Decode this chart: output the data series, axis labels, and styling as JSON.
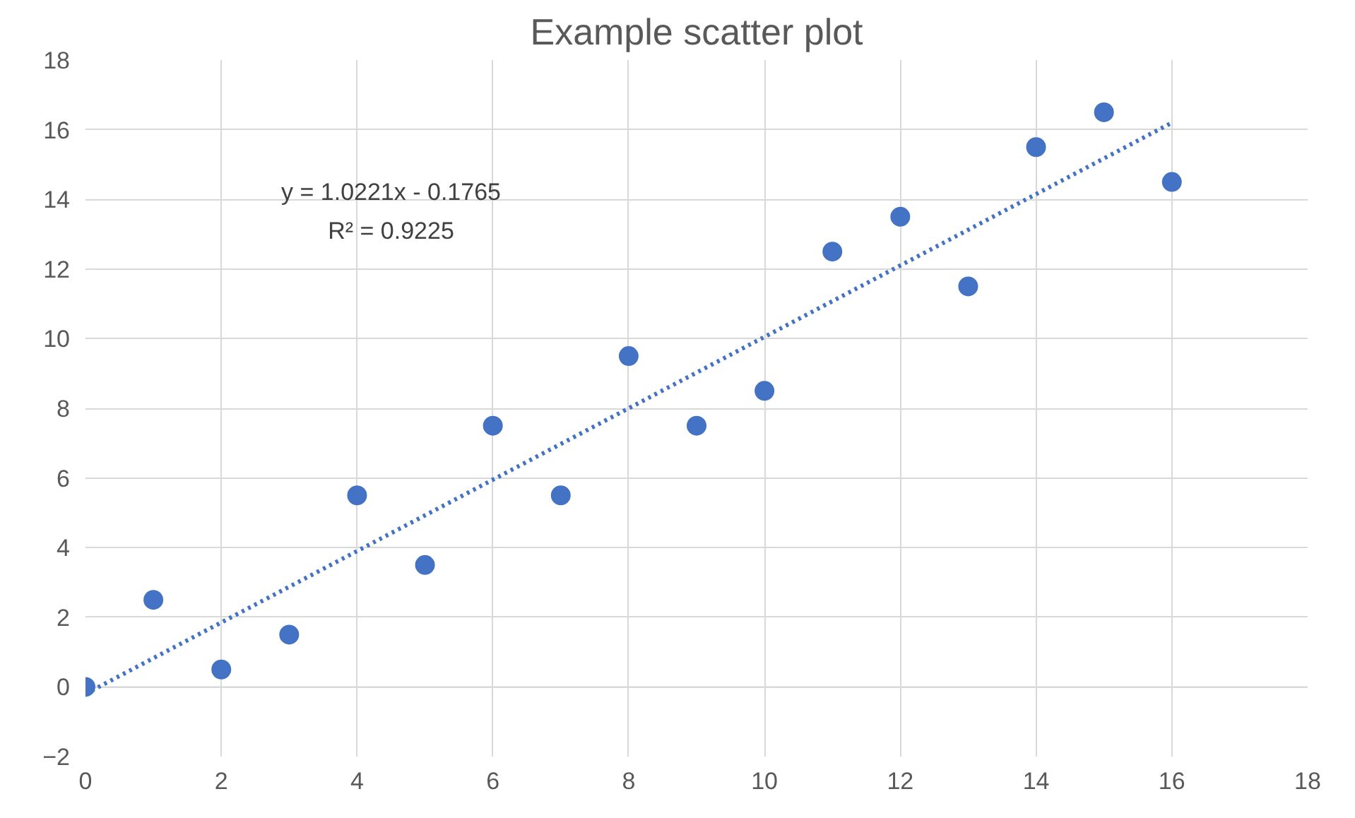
{
  "chart_data": {
    "type": "scatter",
    "title": "Example scatter plot",
    "x": [
      0,
      1,
      2,
      3,
      4,
      5,
      6,
      7,
      8,
      9,
      10,
      11,
      12,
      13,
      14,
      15,
      16
    ],
    "series": [
      {
        "color": "#4472c4",
        "values": [
          0,
          2.5,
          0.5,
          1.5,
          5.5,
          3.5,
          7.5,
          5.5,
          9.5,
          7.5,
          8.5,
          12.5,
          13.5,
          11.5,
          15.5,
          16.5,
          14.5
        ],
        "marker": "circle"
      },
      {
        "type": "line",
        "color": "#4472c4",
        "x": [
          0,
          16
        ],
        "values": [
          -0.2,
          16.2
        ],
        "line_style": "dotted",
        "marker": "none"
      }
    ],
    "annotations": [
      "y = 1.0221x - 0.1765",
      "R² = 0.9225"
    ],
    "xlim": [
      0,
      18
    ],
    "ylim": [
      -2,
      18
    ],
    "xticks": [
      0,
      2,
      4,
      6,
      8,
      10,
      12,
      14,
      16,
      18
    ],
    "yticks": [
      -2,
      0,
      2,
      4,
      6,
      8,
      10,
      12,
      14,
      16,
      18
    ],
    "grid": true
  }
}
